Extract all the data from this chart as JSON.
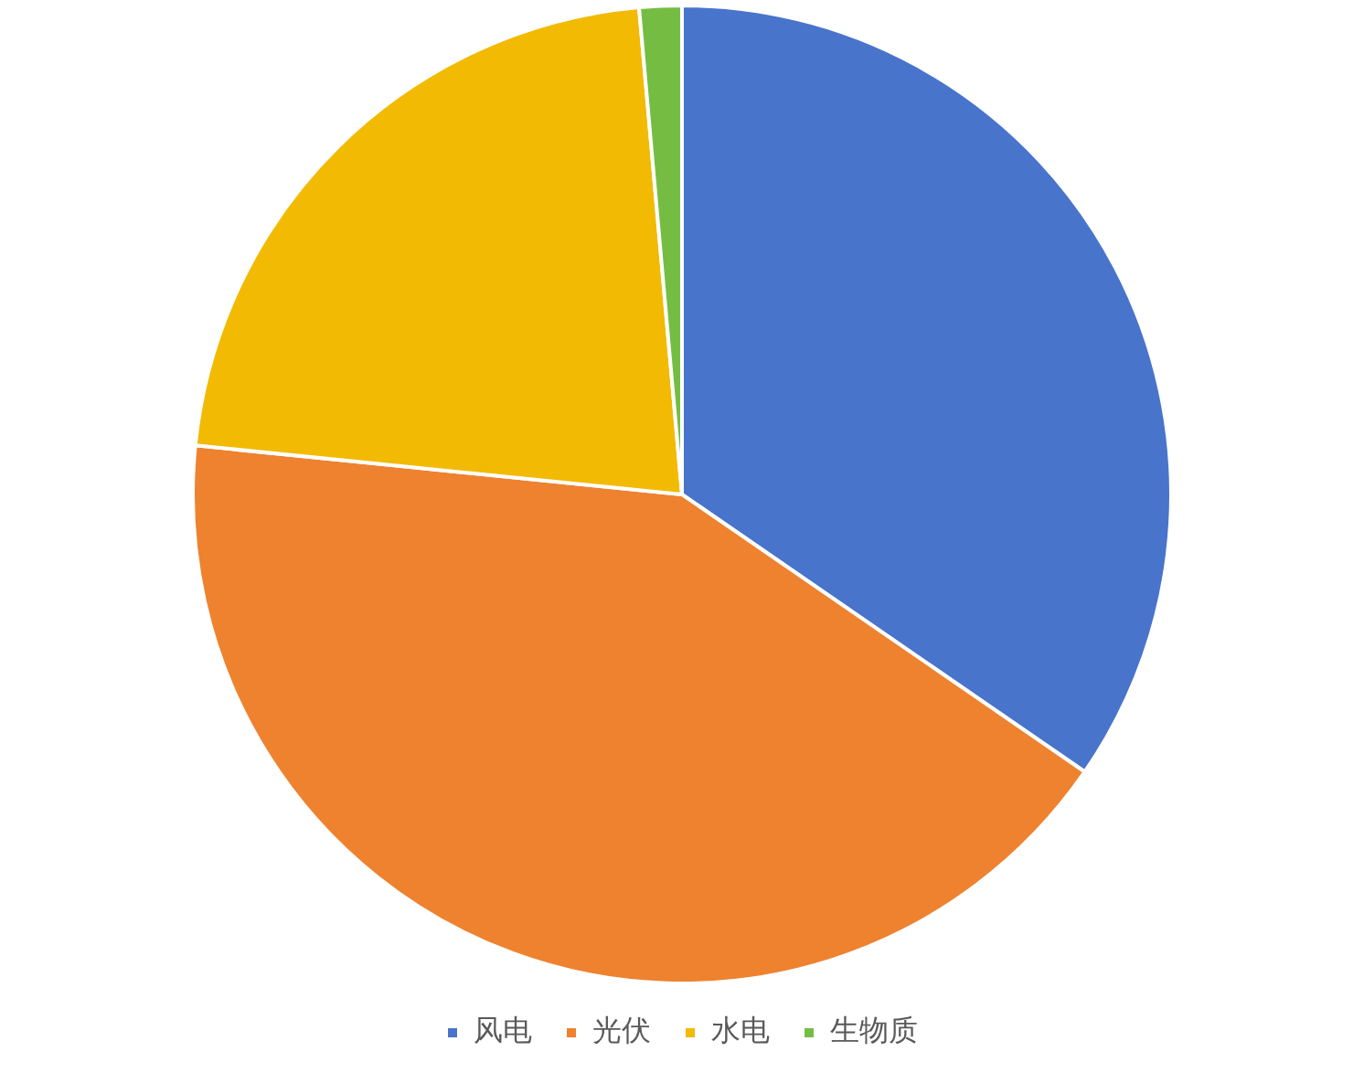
{
  "chart_data": {
    "type": "pie",
    "categories": [
      "风电",
      "光伏",
      "水电",
      "生物质"
    ],
    "values": [
      34.6,
      42.0,
      22.0,
      1.4
    ],
    "colors": [
      "#4874cb",
      "#ee822f",
      "#f2ba02",
      "#75bd42"
    ],
    "legend": "bottom"
  }
}
